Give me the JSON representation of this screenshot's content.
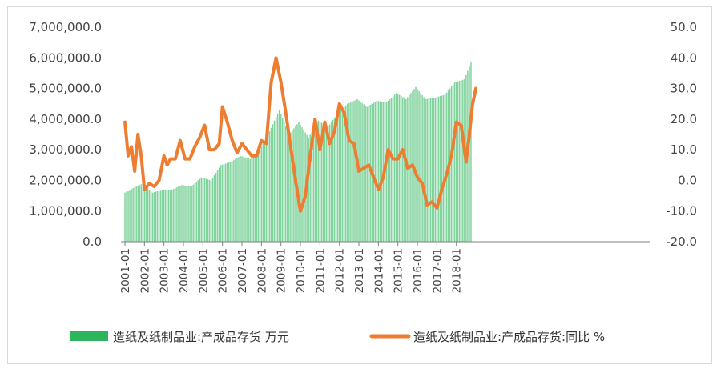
{
  "chart_data": {
    "type": "bar+line",
    "title": "",
    "x_tick_labels": [
      "2001-01",
      "2002-01",
      "2003-01",
      "2004-01",
      "2005-01",
      "2006-01",
      "2007-01",
      "2008-01",
      "2009-01",
      "2010-01",
      "2011-01",
      "2012-01",
      "2013-01",
      "2014-01",
      "2015-01",
      "2016-01",
      "2017-01",
      "2018-01"
    ],
    "y_left": {
      "ticks": [
        "7,000,000.0",
        "6,000,000.0",
        "5,000,000.0",
        "4,000,000.0",
        "3,000,000.0",
        "2,000,000.0",
        "1,000,000.0",
        "0.0"
      ],
      "range": [
        0,
        7000000
      ]
    },
    "y_right": {
      "ticks": [
        "50.0",
        "40.0",
        "30.0",
        "20.0",
        "10.0",
        "0.0",
        "-10.0",
        "-20.0"
      ],
      "range": [
        -20,
        50
      ]
    },
    "series": [
      {
        "name": "造纸及纸制品业:产成品存货 万元",
        "type": "bar",
        "axis": "left",
        "color": "#2db55d",
        "frequency": "monthly",
        "start": "2001-01",
        "keyframes": [
          [
            "2001-01",
            1600000
          ],
          [
            "2001-06",
            1750000
          ],
          [
            "2001-12",
            1900000
          ],
          [
            "2002-06",
            1600000
          ],
          [
            "2002-12",
            1700000
          ],
          [
            "2003-06",
            1700000
          ],
          [
            "2003-12",
            1850000
          ],
          [
            "2004-06",
            1800000
          ],
          [
            "2004-12",
            2100000
          ],
          [
            "2005-06",
            2000000
          ],
          [
            "2005-12",
            2500000
          ],
          [
            "2006-06",
            2600000
          ],
          [
            "2006-12",
            2800000
          ],
          [
            "2007-06",
            2700000
          ],
          [
            "2007-12",
            3000000
          ],
          [
            "2008-06",
            3600000
          ],
          [
            "2008-12",
            4300000
          ],
          [
            "2009-06",
            3500000
          ],
          [
            "2009-12",
            3900000
          ],
          [
            "2010-06",
            3400000
          ],
          [
            "2010-12",
            3950000
          ],
          [
            "2011-06",
            3750000
          ],
          [
            "2011-12",
            4200000
          ],
          [
            "2012-06",
            4500000
          ],
          [
            "2012-12",
            4650000
          ],
          [
            "2013-06",
            4400000
          ],
          [
            "2013-12",
            4600000
          ],
          [
            "2014-06",
            4550000
          ],
          [
            "2014-12",
            4850000
          ],
          [
            "2015-06",
            4650000
          ],
          [
            "2015-12",
            5050000
          ],
          [
            "2016-06",
            4650000
          ],
          [
            "2016-12",
            4700000
          ],
          [
            "2017-06",
            4800000
          ],
          [
            "2017-12",
            5200000
          ],
          [
            "2018-06",
            5300000
          ],
          [
            "2018-10",
            5850000
          ]
        ]
      },
      {
        "name": "造纸及纸制品业:产成品存货:同比 %",
        "type": "line",
        "axis": "right",
        "color": "#ed7d31",
        "frequency": "monthly",
        "start": "2001-01",
        "keyframes": [
          [
            "2001-01",
            19
          ],
          [
            "2001-03",
            8
          ],
          [
            "2001-05",
            11
          ],
          [
            "2001-07",
            3
          ],
          [
            "2001-09",
            15
          ],
          [
            "2001-11",
            8
          ],
          [
            "2002-01",
            -3
          ],
          [
            "2002-04",
            -1
          ],
          [
            "2002-07",
            -2
          ],
          [
            "2002-10",
            0
          ],
          [
            "2003-01",
            8
          ],
          [
            "2003-03",
            5
          ],
          [
            "2003-05",
            7
          ],
          [
            "2003-08",
            7
          ],
          [
            "2003-11",
            13
          ],
          [
            "2004-02",
            7
          ],
          [
            "2004-05",
            7
          ],
          [
            "2004-08",
            11
          ],
          [
            "2004-11",
            14
          ],
          [
            "2005-02",
            18
          ],
          [
            "2005-05",
            10
          ],
          [
            "2005-08",
            10
          ],
          [
            "2005-11",
            12
          ],
          [
            "2006-01",
            24
          ],
          [
            "2006-04",
            19
          ],
          [
            "2006-07",
            13
          ],
          [
            "2006-10",
            9
          ],
          [
            "2007-01",
            12
          ],
          [
            "2007-04",
            10
          ],
          [
            "2007-07",
            8
          ],
          [
            "2007-10",
            8
          ],
          [
            "2008-01",
            13
          ],
          [
            "2008-04",
            12
          ],
          [
            "2008-07",
            32
          ],
          [
            "2008-10",
            40
          ],
          [
            "2009-01",
            32
          ],
          [
            "2009-04",
            22
          ],
          [
            "2009-07",
            11
          ],
          [
            "2009-10",
            0
          ],
          [
            "2010-01",
            -10
          ],
          [
            "2010-04",
            -5
          ],
          [
            "2010-07",
            8
          ],
          [
            "2010-10",
            20
          ],
          [
            "2011-01",
            10
          ],
          [
            "2011-04",
            19
          ],
          [
            "2011-07",
            12
          ],
          [
            "2011-10",
            16
          ],
          [
            "2012-01",
            25
          ],
          [
            "2012-04",
            22
          ],
          [
            "2012-07",
            13
          ],
          [
            "2012-10",
            12
          ],
          [
            "2013-01",
            3
          ],
          [
            "2013-04",
            4
          ],
          [
            "2013-07",
            5
          ],
          [
            "2013-10",
            1
          ],
          [
            "2014-01",
            -3
          ],
          [
            "2014-04",
            1
          ],
          [
            "2014-07",
            10
          ],
          [
            "2014-10",
            7
          ],
          [
            "2015-01",
            7
          ],
          [
            "2015-04",
            10
          ],
          [
            "2015-07",
            4
          ],
          [
            "2015-10",
            5
          ],
          [
            "2016-01",
            1
          ],
          [
            "2016-04",
            -1
          ],
          [
            "2016-07",
            -8
          ],
          [
            "2016-10",
            -7
          ],
          [
            "2017-01",
            -9
          ],
          [
            "2017-04",
            -3
          ],
          [
            "2017-07",
            2
          ],
          [
            "2017-10",
            8
          ],
          [
            "2018-01",
            19
          ],
          [
            "2018-04",
            18
          ],
          [
            "2018-07",
            6
          ],
          [
            "2018-09",
            15
          ],
          [
            "2018-11",
            25
          ],
          [
            "2019-01",
            30
          ]
        ]
      }
    ],
    "legend": {
      "position": "bottom",
      "items": [
        {
          "label": "造纸及纸制品业:产成品存货 万元",
          "color": "#2db55d",
          "marker": "bar"
        },
        {
          "label": "造纸及纸制品业:产成品存货:同比 %",
          "color": "#ed7d31",
          "marker": "line"
        }
      ]
    },
    "gridlines": false
  }
}
